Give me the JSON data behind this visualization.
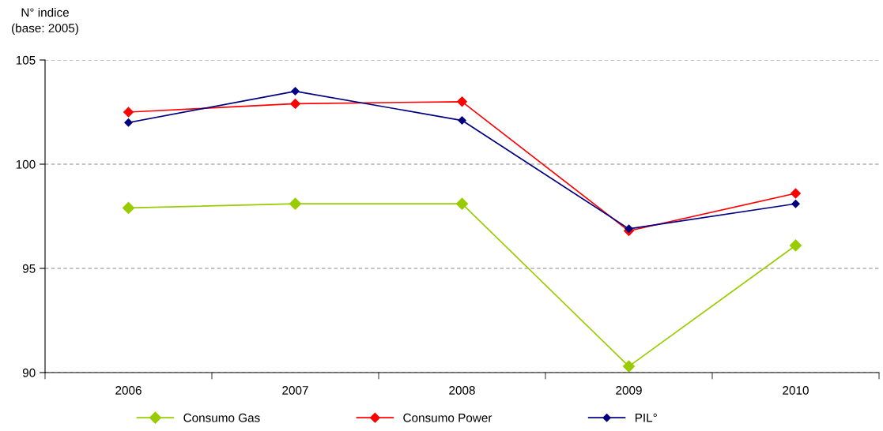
{
  "chart_data": {
    "type": "line",
    "ylabel": "N° indice\n(base: 2005)",
    "categories": [
      "2006",
      "2007",
      "2008",
      "2009",
      "2010"
    ],
    "series": [
      {
        "name": "Consumo Gas",
        "color": "#99cc00",
        "values": [
          97.9,
          98.1,
          98.1,
          90.3,
          96.1
        ]
      },
      {
        "name": "Consumo Power",
        "color": "#ff0000",
        "values": [
          102.5,
          102.9,
          103.0,
          96.8,
          98.6
        ]
      },
      {
        "name": "PIL°",
        "color": "#000080",
        "values": [
          102.0,
          103.5,
          102.1,
          96.9,
          98.1
        ]
      }
    ],
    "ylim": [
      90,
      105
    ],
    "yticks": [
      90,
      95,
      100,
      105
    ],
    "grid": "y",
    "legend": "bottom",
    "marker": "diamond",
    "line_style": "solid"
  }
}
